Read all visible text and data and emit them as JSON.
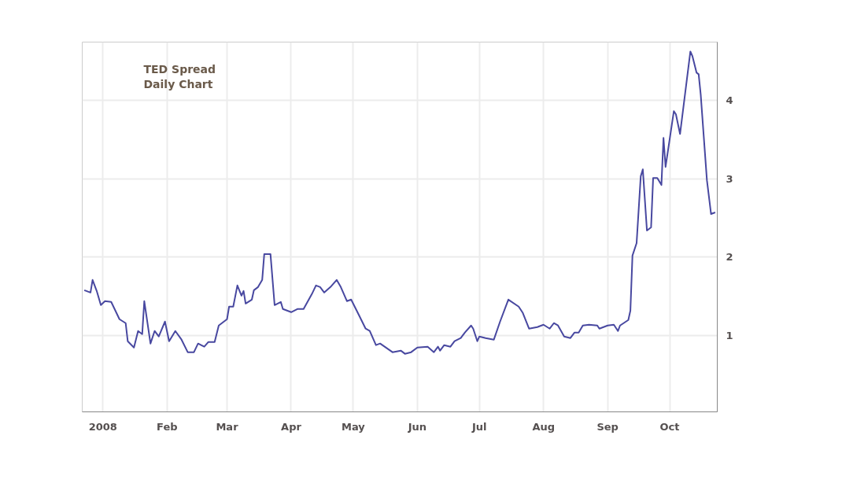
{
  "chart_data": {
    "type": "line",
    "title": "TED Spread",
    "subtitle": "Daily Chart",
    "grid": true,
    "xlim": [
      "2007-12-22",
      "2008-10-24"
    ],
    "xticks": [
      {
        "value": "2008-01-01",
        "label": "2008"
      },
      {
        "value": "2008-02-01",
        "label": "Feb"
      },
      {
        "value": "2008-03-01",
        "label": "Mar"
      },
      {
        "value": "2008-04-01",
        "label": "Apr"
      },
      {
        "value": "2008-05-01",
        "label": "May"
      },
      {
        "value": "2008-06-01",
        "label": "Jun"
      },
      {
        "value": "2008-07-01",
        "label": "Jul"
      },
      {
        "value": "2008-08-01",
        "label": "Aug"
      },
      {
        "value": "2008-09-01",
        "label": "Sep"
      },
      {
        "value": "2008-10-01",
        "label": "Oct"
      }
    ],
    "ylim": [
      0.03,
      4.74
    ],
    "yticks": [
      1,
      2,
      3,
      4
    ],
    "x": [
      "2007-12-23",
      "2007-12-26",
      "2007-12-27",
      "2007-12-29",
      "2007-12-31",
      "2008-01-02",
      "2008-01-05",
      "2008-01-07",
      "2008-01-09",
      "2008-01-12",
      "2008-01-13",
      "2008-01-16",
      "2008-01-18",
      "2008-01-20",
      "2008-01-21",
      "2008-01-24",
      "2008-01-26",
      "2008-01-28",
      "2008-01-31",
      "2008-02-02",
      "2008-02-05",
      "2008-02-08",
      "2008-02-11",
      "2008-02-14",
      "2008-02-16",
      "2008-02-19",
      "2008-02-21",
      "2008-02-24",
      "2008-02-26",
      "2008-03-01",
      "2008-03-02",
      "2008-03-04",
      "2008-03-06",
      "2008-03-08",
      "2008-03-09",
      "2008-03-10",
      "2008-03-13",
      "2008-03-14",
      "2008-03-16",
      "2008-03-18",
      "2008-03-19",
      "2008-03-22",
      "2008-03-24",
      "2008-03-27",
      "2008-03-28",
      "2008-03-30",
      "2008-04-01",
      "2008-04-04",
      "2008-04-07",
      "2008-04-11",
      "2008-04-13",
      "2008-04-15",
      "2008-04-17",
      "2008-04-20",
      "2008-04-23",
      "2008-04-25",
      "2008-04-28",
      "2008-04-30",
      "2008-05-04",
      "2008-05-07",
      "2008-05-09",
      "2008-05-12",
      "2008-05-14",
      "2008-05-20",
      "2008-05-24",
      "2008-05-26",
      "2008-05-29",
      "2008-06-01",
      "2008-06-06",
      "2008-06-09",
      "2008-06-11",
      "2008-06-12",
      "2008-06-14",
      "2008-06-17",
      "2008-06-19",
      "2008-06-22",
      "2008-06-24",
      "2008-06-27",
      "2008-06-28",
      "2008-06-30",
      "2008-07-01",
      "2008-07-04",
      "2008-07-08",
      "2008-07-11",
      "2008-07-15",
      "2008-07-20",
      "2008-07-22",
      "2008-07-25",
      "2008-07-29",
      "2008-08-01",
      "2008-08-04",
      "2008-08-06",
      "2008-08-08",
      "2008-08-11",
      "2008-08-14",
      "2008-08-16",
      "2008-08-18",
      "2008-08-20",
      "2008-08-23",
      "2008-08-27",
      "2008-08-28",
      "2008-09-01",
      "2008-09-04",
      "2008-09-06",
      "2008-09-07",
      "2008-09-11",
      "2008-09-12",
      "2008-09-13",
      "2008-09-15",
      "2008-09-17",
      "2008-09-18",
      "2008-09-20",
      "2008-09-22",
      "2008-09-23",
      "2008-09-25",
      "2008-09-27",
      "2008-09-28",
      "2008-09-29",
      "2008-10-03",
      "2008-10-04",
      "2008-10-06",
      "2008-10-11",
      "2008-10-12",
      "2008-10-14",
      "2008-10-15",
      "2008-10-16",
      "2008-10-19",
      "2008-10-21",
      "2008-10-23"
    ],
    "series": [
      {
        "color": "#4848a0",
        "values": [
          1.58,
          1.55,
          1.71,
          1.57,
          1.39,
          1.44,
          1.43,
          1.32,
          1.21,
          1.16,
          0.93,
          0.85,
          1.06,
          1.02,
          1.44,
          0.9,
          1.06,
          0.99,
          1.18,
          0.93,
          1.06,
          0.95,
          0.79,
          0.79,
          0.9,
          0.86,
          0.92,
          0.92,
          1.13,
          1.21,
          1.37,
          1.37,
          1.64,
          1.51,
          1.57,
          1.41,
          1.46,
          1.58,
          1.62,
          1.71,
          2.04,
          2.04,
          1.39,
          1.43,
          1.34,
          1.32,
          1.3,
          1.34,
          1.34,
          1.53,
          1.64,
          1.62,
          1.55,
          1.62,
          1.71,
          1.62,
          1.44,
          1.46,
          1.25,
          1.09,
          1.06,
          0.88,
          0.9,
          0.79,
          0.81,
          0.77,
          0.79,
          0.85,
          0.86,
          0.79,
          0.86,
          0.81,
          0.88,
          0.86,
          0.93,
          0.97,
          1.04,
          1.13,
          1.09,
          0.93,
          0.99,
          0.97,
          0.95,
          1.18,
          1.46,
          1.37,
          1.29,
          1.09,
          1.11,
          1.14,
          1.09,
          1.16,
          1.13,
          0.99,
          0.97,
          1.04,
          1.04,
          1.13,
          1.14,
          1.13,
          1.09,
          1.13,
          1.14,
          1.06,
          1.13,
          1.2,
          1.32,
          2.02,
          2.18,
          3.03,
          3.12,
          2.34,
          2.38,
          3.01,
          3.01,
          2.92,
          3.52,
          3.15,
          3.86,
          3.82,
          3.57,
          4.62,
          4.56,
          4.35,
          4.33,
          4.07,
          2.98,
          2.55,
          2.57
        ]
      }
    ]
  }
}
